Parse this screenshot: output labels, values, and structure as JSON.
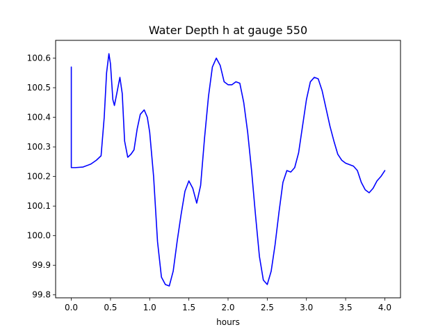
{
  "chart_data": {
    "type": "line",
    "title": "Water Depth h at gauge 550",
    "xlabel": "hours",
    "ylabel": "",
    "xlim": [
      -0.2,
      4.2
    ],
    "ylim": [
      99.79,
      100.66
    ],
    "x_ticks": [
      0.0,
      0.5,
      1.0,
      1.5,
      2.0,
      2.5,
      3.0,
      3.5,
      4.0
    ],
    "x_tick_labels": [
      "0.0",
      "0.5",
      "1.0",
      "1.5",
      "2.0",
      "2.5",
      "3.0",
      "3.5",
      "4.0"
    ],
    "y_ticks": [
      99.8,
      99.9,
      100.0,
      100.1,
      100.2,
      100.3,
      100.4,
      100.5,
      100.6
    ],
    "y_tick_labels": [
      "99.8",
      "99.9",
      "100.0",
      "100.1",
      "100.2",
      "100.3",
      "100.4",
      "100.5",
      "100.6"
    ],
    "grid": false,
    "legend": "none",
    "series": [
      {
        "color": "#0000ff",
        "points": [
          [
            0.0,
            100.57
          ],
          [
            0.0,
            100.23
          ],
          [
            0.05,
            100.23
          ],
          [
            0.15,
            100.232
          ],
          [
            0.25,
            100.242
          ],
          [
            0.32,
            100.255
          ],
          [
            0.38,
            100.27
          ],
          [
            0.42,
            100.4
          ],
          [
            0.45,
            100.55
          ],
          [
            0.48,
            100.615
          ],
          [
            0.5,
            100.58
          ],
          [
            0.53,
            100.46
          ],
          [
            0.55,
            100.44
          ],
          [
            0.58,
            100.48
          ],
          [
            0.62,
            100.535
          ],
          [
            0.65,
            100.48
          ],
          [
            0.68,
            100.32
          ],
          [
            0.72,
            100.265
          ],
          [
            0.76,
            100.275
          ],
          [
            0.8,
            100.29
          ],
          [
            0.84,
            100.36
          ],
          [
            0.88,
            100.41
          ],
          [
            0.93,
            100.425
          ],
          [
            0.97,
            100.4
          ],
          [
            1.0,
            100.35
          ],
          [
            1.05,
            100.2
          ],
          [
            1.1,
            99.98
          ],
          [
            1.15,
            99.86
          ],
          [
            1.2,
            99.835
          ],
          [
            1.25,
            99.83
          ],
          [
            1.3,
            99.88
          ],
          [
            1.35,
            99.98
          ],
          [
            1.4,
            100.07
          ],
          [
            1.45,
            100.15
          ],
          [
            1.5,
            100.185
          ],
          [
            1.55,
            100.16
          ],
          [
            1.6,
            100.11
          ],
          [
            1.65,
            100.17
          ],
          [
            1.7,
            100.33
          ],
          [
            1.75,
            100.47
          ],
          [
            1.8,
            100.57
          ],
          [
            1.85,
            100.6
          ],
          [
            1.9,
            100.575
          ],
          [
            1.95,
            100.52
          ],
          [
            2.0,
            100.51
          ],
          [
            2.05,
            100.51
          ],
          [
            2.1,
            100.52
          ],
          [
            2.15,
            100.515
          ],
          [
            2.2,
            100.45
          ],
          [
            2.25,
            100.35
          ],
          [
            2.3,
            100.22
          ],
          [
            2.35,
            100.07
          ],
          [
            2.4,
            99.93
          ],
          [
            2.45,
            99.85
          ],
          [
            2.5,
            99.835
          ],
          [
            2.55,
            99.88
          ],
          [
            2.6,
            99.97
          ],
          [
            2.65,
            100.08
          ],
          [
            2.7,
            100.18
          ],
          [
            2.75,
            100.22
          ],
          [
            2.8,
            100.215
          ],
          [
            2.85,
            100.23
          ],
          [
            2.9,
            100.28
          ],
          [
            2.95,
            100.37
          ],
          [
            3.0,
            100.46
          ],
          [
            3.05,
            100.52
          ],
          [
            3.1,
            100.535
          ],
          [
            3.15,
            100.53
          ],
          [
            3.2,
            100.49
          ],
          [
            3.25,
            100.43
          ],
          [
            3.3,
            100.37
          ],
          [
            3.35,
            100.32
          ],
          [
            3.4,
            100.275
          ],
          [
            3.45,
            100.255
          ],
          [
            3.5,
            100.245
          ],
          [
            3.55,
            100.24
          ],
          [
            3.6,
            100.235
          ],
          [
            3.65,
            100.22
          ],
          [
            3.7,
            100.18
          ],
          [
            3.75,
            100.155
          ],
          [
            3.8,
            100.145
          ],
          [
            3.85,
            100.16
          ],
          [
            3.9,
            100.185
          ],
          [
            3.95,
            100.2
          ],
          [
            4.0,
            100.22
          ]
        ]
      }
    ]
  }
}
